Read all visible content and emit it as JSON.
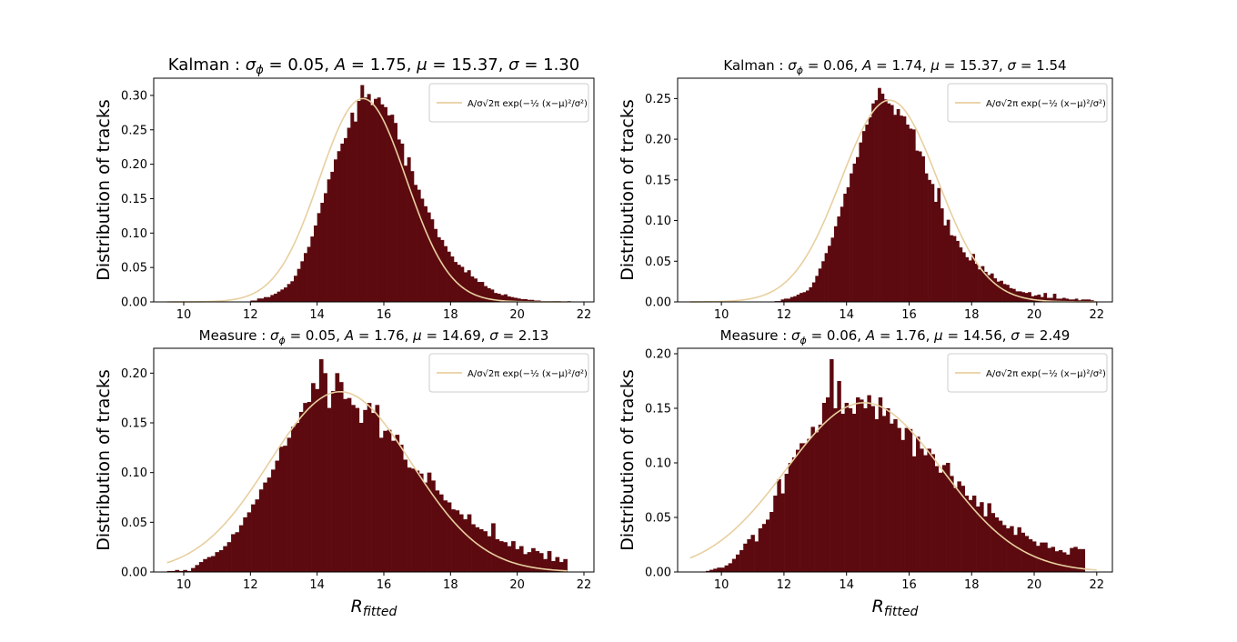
{
  "figure": {
    "legend_text": "A/σ√2π exp(−½ (x−μ)²/σ²)",
    "legend_location": "upper right"
  },
  "colors": {
    "bar": "#5c0a0f",
    "fit": "#e8cfa0"
  },
  "chart_data": [
    {
      "type": "bar",
      "title": "Kalman : σϕ = 0.05, A = 1.75, μ = 15.37, σ = 1.30",
      "title_parts": [
        "Kalman : ",
        "σ",
        "ϕ",
        " = 0.05, ",
        "A",
        " = 1.75, ",
        "μ",
        " = 15.37, ",
        "σ",
        " = 1.30"
      ],
      "xlabel": "",
      "ylabel": "Distribution of tracks",
      "xlim": [
        9.1,
        22.3
      ],
      "ylim": [
        0,
        0.325
      ],
      "xticks": [
        "10",
        "12",
        "14",
        "16",
        "18",
        "20",
        "22"
      ],
      "yticks": [
        "0.00",
        "0.05",
        "0.10",
        "0.15",
        "0.20",
        "0.25",
        "0.30"
      ],
      "fit": {
        "A": 1.75,
        "mu": 15.37,
        "sigma": 1.3,
        "x_range": [
          9.5,
          21.5
        ]
      },
      "bins": {
        "start": 12.0,
        "width": 0.1
      },
      "values": [
        0.002,
        0.002,
        0.005,
        0.005,
        0.007,
        0.007,
        0.01,
        0.012,
        0.015,
        0.018,
        0.021,
        0.026,
        0.03,
        0.038,
        0.048,
        0.059,
        0.071,
        0.08,
        0.095,
        0.111,
        0.129,
        0.144,
        0.158,
        0.178,
        0.189,
        0.207,
        0.219,
        0.23,
        0.238,
        0.253,
        0.275,
        0.262,
        0.292,
        0.315,
        0.297,
        0.302,
        0.286,
        0.295,
        0.297,
        0.287,
        0.283,
        0.271,
        0.272,
        0.26,
        0.236,
        0.23,
        0.198,
        0.21,
        0.19,
        0.17,
        0.163,
        0.15,
        0.139,
        0.13,
        0.12,
        0.106,
        0.094,
        0.09,
        0.081,
        0.073,
        0.066,
        0.058,
        0.054,
        0.051,
        0.043,
        0.046,
        0.037,
        0.034,
        0.029,
        0.029,
        0.023,
        0.02,
        0.018,
        0.013,
        0.012,
        0.01,
        0.011,
        0.008,
        0.007,
        0.006,
        0.005,
        0.004,
        0.004,
        0.003,
        0.003,
        0.002,
        0.002,
        0.001,
        0.001,
        0.001,
        0.001,
        0.001,
        0.001,
        0.0,
        0.0,
        0.001
      ]
    },
    {
      "type": "bar",
      "title": "Kalman : σϕ = 0.06, A = 1.74, μ = 15.37, σ = 1.54",
      "title_parts": [
        "Kalman : ",
        "σ",
        "ϕ",
        " = 0.06, ",
        "A",
        " = 1.74, ",
        "μ",
        " = 15.37, ",
        "σ",
        " = 1.54"
      ],
      "xlabel": "",
      "ylabel": "Distribution of tracks",
      "xlim": [
        8.6,
        22.5
      ],
      "ylim": [
        0,
        0.275
      ],
      "xticks": [
        "10",
        "12",
        "14",
        "16",
        "18",
        "20",
        "22"
      ],
      "yticks": [
        "0.00",
        "0.05",
        "0.10",
        "0.15",
        "0.20",
        "0.25"
      ],
      "fit": {
        "A": 1.74,
        "mu": 15.37,
        "sigma": 1.54,
        "x_range": [
          9.0,
          22.0
        ]
      },
      "bins": {
        "start": 11.7,
        "width": 0.1
      },
      "values": [
        0.001,
        0.001,
        0.003,
        0.004,
        0.004,
        0.006,
        0.007,
        0.009,
        0.011,
        0.012,
        0.014,
        0.018,
        0.024,
        0.032,
        0.041,
        0.05,
        0.06,
        0.069,
        0.079,
        0.093,
        0.105,
        0.117,
        0.133,
        0.141,
        0.158,
        0.17,
        0.178,
        0.196,
        0.21,
        0.218,
        0.227,
        0.244,
        0.248,
        0.263,
        0.256,
        0.249,
        0.244,
        0.242,
        0.23,
        0.237,
        0.229,
        0.228,
        0.218,
        0.213,
        0.212,
        0.186,
        0.185,
        0.179,
        0.158,
        0.15,
        0.145,
        0.123,
        0.14,
        0.115,
        0.094,
        0.101,
        0.082,
        0.081,
        0.075,
        0.067,
        0.061,
        0.055,
        0.051,
        0.059,
        0.047,
        0.04,
        0.044,
        0.037,
        0.033,
        0.035,
        0.029,
        0.025,
        0.026,
        0.022,
        0.021,
        0.017,
        0.016,
        0.013,
        0.013,
        0.012,
        0.011,
        0.012,
        0.007,
        0.008,
        0.009,
        0.006,
        0.011,
        0.005,
        0.005,
        0.01,
        0.004,
        0.004,
        0.005,
        0.004,
        0.003,
        0.003,
        0.004,
        0.002,
        0.003,
        0.003,
        0.003,
        0.002
      ]
    },
    {
      "type": "bar",
      "title": "Measure : σϕ = 0.05, A = 1.76, μ = 14.69, σ = 2.13",
      "title_parts": [
        "Measure : ",
        "σ",
        "ϕ",
        " = 0.05, ",
        "A",
        " = 1.76, ",
        "μ",
        " = 14.69, ",
        "σ",
        " = 2.13"
      ],
      "xlabel": "Rfitted",
      "xlabel_parts": [
        "R",
        "fitted"
      ],
      "ylabel": "Distribution of tracks",
      "xlim": [
        9.1,
        22.3
      ],
      "ylim": [
        0,
        0.225
      ],
      "xticks": [
        "10",
        "12",
        "14",
        "16",
        "18",
        "20",
        "22"
      ],
      "yticks": [
        "0.00",
        "0.05",
        "0.10",
        "0.15",
        "0.20"
      ],
      "fit": {
        "A": 1.76,
        "mu": 14.69,
        "sigma": 2.13,
        "x_range": [
          9.5,
          21.5
        ]
      },
      "bins": {
        "start": 9.5,
        "width": 0.12
      },
      "values": [
        0.001,
        0.001,
        0.002,
        0.001,
        0.002,
        0.001,
        0.004,
        0.007,
        0.01,
        0.013,
        0.015,
        0.016,
        0.02,
        0.022,
        0.026,
        0.03,
        0.038,
        0.04,
        0.047,
        0.055,
        0.06,
        0.068,
        0.073,
        0.083,
        0.09,
        0.095,
        0.103,
        0.112,
        0.126,
        0.127,
        0.135,
        0.146,
        0.15,
        0.161,
        0.17,
        0.171,
        0.19,
        0.184,
        0.214,
        0.2,
        0.165,
        0.182,
        0.2,
        0.191,
        0.174,
        0.175,
        0.168,
        0.165,
        0.15,
        0.163,
        0.17,
        0.16,
        0.168,
        0.135,
        0.142,
        0.143,
        0.132,
        0.138,
        0.128,
        0.113,
        0.105,
        0.104,
        0.102,
        0.099,
        0.09,
        0.1,
        0.092,
        0.082,
        0.078,
        0.072,
        0.07,
        0.063,
        0.062,
        0.058,
        0.053,
        0.058,
        0.048,
        0.045,
        0.043,
        0.041,
        0.036,
        0.049,
        0.033,
        0.031,
        0.03,
        0.026,
        0.031,
        0.023,
        0.026,
        0.018,
        0.02,
        0.024,
        0.021,
        0.019,
        0.013,
        0.021,
        0.011,
        0.015,
        0.01,
        0.013
      ]
    },
    {
      "type": "bar",
      "title": "Measure : σϕ = 0.06, A = 1.76, μ = 14.56, σ = 2.49",
      "title_parts": [
        "Measure : ",
        "σ",
        "ϕ",
        " = 0.06, ",
        "A",
        " = 1.76, ",
        "μ",
        " = 14.56, ",
        "σ",
        " = 2.49"
      ],
      "xlabel": "Rfitted",
      "xlabel_parts": [
        "R",
        "fitted"
      ],
      "ylabel": "Distribution of tracks",
      "xlim": [
        8.6,
        22.5
      ],
      "ylim": [
        0,
        0.205
      ],
      "xticks": [
        "10",
        "12",
        "14",
        "16",
        "18",
        "20",
        "22"
      ],
      "yticks": [
        "0.00",
        "0.05",
        "0.10",
        "0.15",
        "0.20"
      ],
      "fit": {
        "A": 1.76,
        "mu": 14.56,
        "sigma": 2.49,
        "x_range": [
          9.0,
          22.0
        ]
      },
      "bins": {
        "start": 9.5,
        "width": 0.12
      },
      "values": [
        0.001,
        0.002,
        0.003,
        0.004,
        0.004,
        0.006,
        0.008,
        0.012,
        0.016,
        0.02,
        0.026,
        0.03,
        0.034,
        0.028,
        0.04,
        0.044,
        0.048,
        0.055,
        0.07,
        0.085,
        0.072,
        0.09,
        0.1,
        0.105,
        0.112,
        0.118,
        0.118,
        0.122,
        0.133,
        0.128,
        0.135,
        0.155,
        0.16,
        0.195,
        0.15,
        0.175,
        0.145,
        0.155,
        0.15,
        0.145,
        0.16,
        0.158,
        0.15,
        0.162,
        0.152,
        0.14,
        0.16,
        0.143,
        0.15,
        0.136,
        0.14,
        0.132,
        0.121,
        0.132,
        0.131,
        0.106,
        0.124,
        0.113,
        0.107,
        0.113,
        0.108,
        0.097,
        0.091,
        0.098,
        0.1,
        0.088,
        0.077,
        0.083,
        0.079,
        0.07,
        0.066,
        0.07,
        0.06,
        0.064,
        0.051,
        0.063,
        0.054,
        0.05,
        0.047,
        0.043,
        0.04,
        0.042,
        0.034,
        0.041,
        0.036,
        0.033,
        0.03,
        0.028,
        0.024,
        0.027,
        0.027,
        0.022,
        0.023,
        0.019,
        0.02,
        0.018,
        0.016,
        0.022,
        0.023,
        0.021,
        0.021
      ]
    }
  ]
}
